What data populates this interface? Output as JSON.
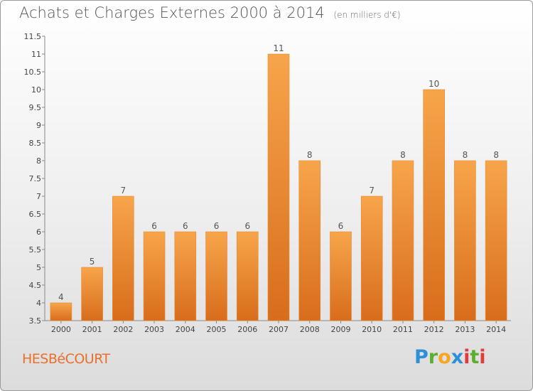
{
  "header": {
    "title": "Achats et Charges Externes 2000 à 2014",
    "unit": "(en milliers d'€)"
  },
  "footer": {
    "commune": "HESBéCOURT",
    "logo_letters": [
      "P",
      "r",
      "o",
      "x",
      "i",
      "t",
      "i"
    ],
    "logo_colors": [
      "#2c8fd8",
      "#5cae2e",
      "#f5a623",
      "#2c8fd8",
      "#e23b3b",
      "#5cae2e",
      "#e23b3b"
    ]
  },
  "colors": {
    "bar_top": "#f7a54a",
    "bar_bottom": "#d86d1c",
    "commune": "#e8702a"
  },
  "chart_data": {
    "type": "bar",
    "title": "Achats et Charges Externes 2000 à 2014",
    "subtitle": "(en milliers d'€)",
    "categories": [
      "2000",
      "2001",
      "2002",
      "2003",
      "2004",
      "2005",
      "2006",
      "2007",
      "2008",
      "2009",
      "2010",
      "2011",
      "2012",
      "2013",
      "2014"
    ],
    "values": [
      4,
      5,
      7,
      6,
      6,
      6,
      6,
      11,
      8,
      6,
      7,
      8,
      10,
      8,
      8
    ],
    "ylim": [
      3.5,
      11.5
    ],
    "yticks": [
      "3.5",
      "4",
      "4.5",
      "5",
      "5.5",
      "6",
      "6.5",
      "7",
      "7.5",
      "8",
      "8.5",
      "9",
      "9.5",
      "10",
      "10.5",
      "11",
      "11.5"
    ],
    "grid": false,
    "xlabel": "",
    "ylabel": ""
  }
}
